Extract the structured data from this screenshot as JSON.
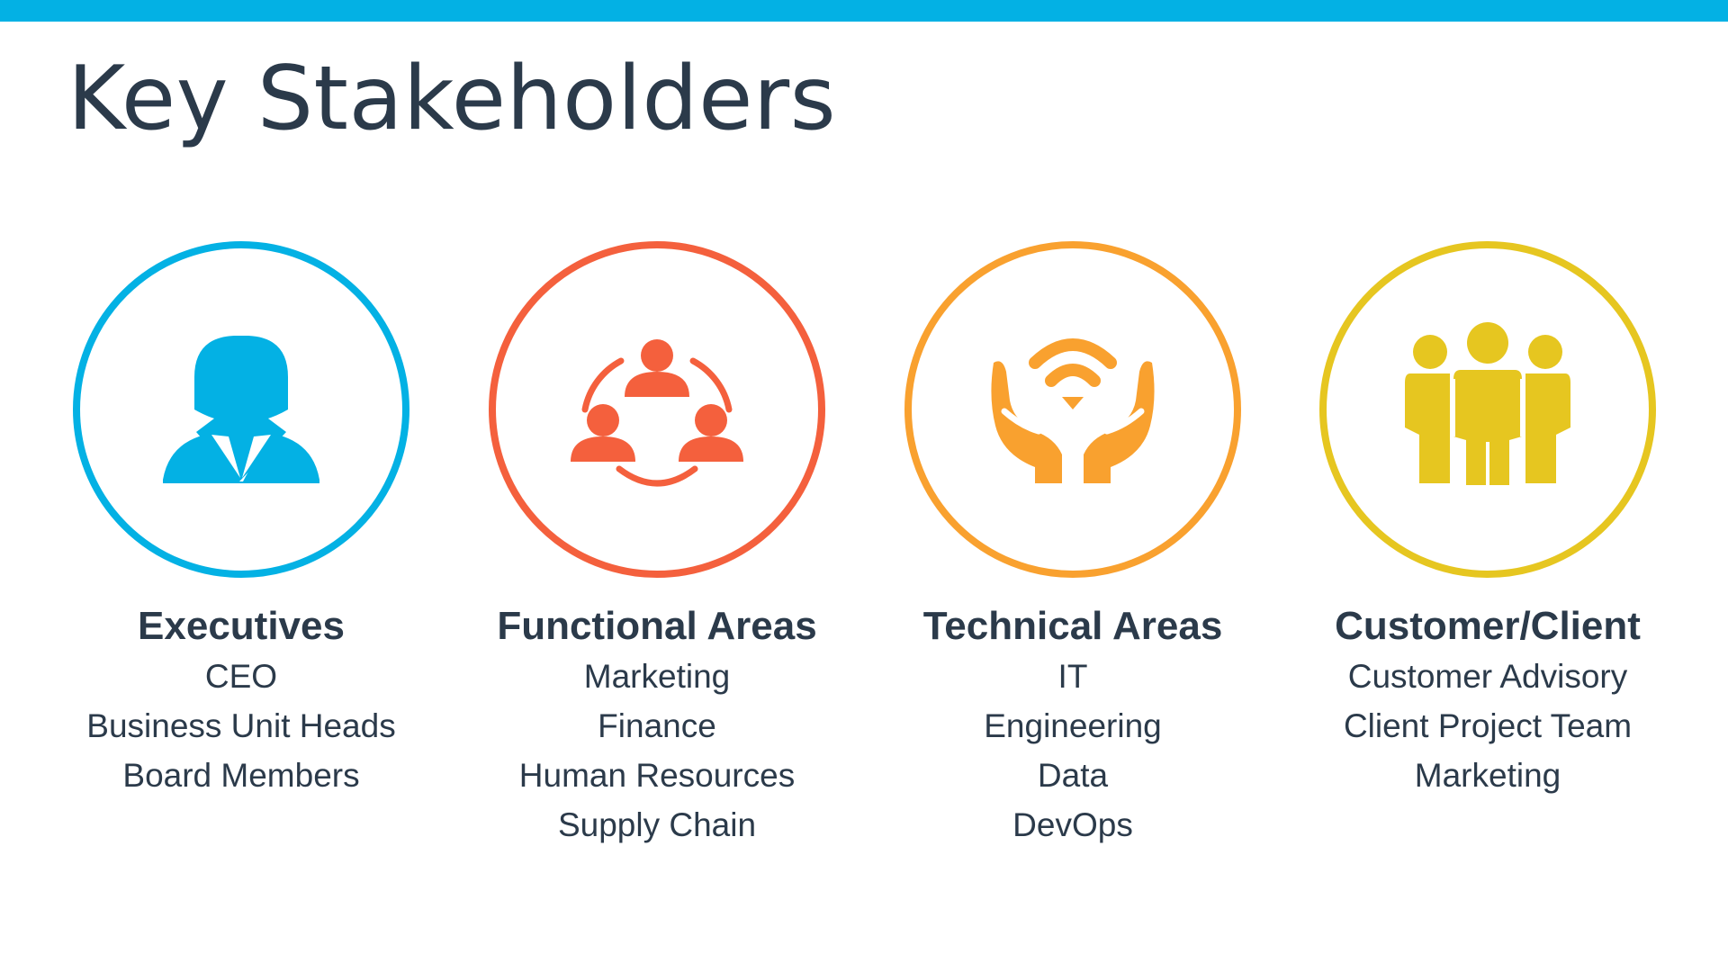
{
  "slide": {
    "title": "Key Stakeholders",
    "accent_color": "#03b1e4",
    "text_color": "#2b3a4a"
  },
  "groups": [
    {
      "heading": "Executives",
      "icon": "executive-person-icon",
      "color": "#03b1e4",
      "items": [
        "CEO",
        "Business Unit Heads",
        "Board Members"
      ]
    },
    {
      "heading": "Functional Areas",
      "icon": "team-cycle-icon",
      "color": "#f4603d",
      "items": [
        "Marketing",
        "Finance",
        "Human Resources",
        "Supply Chain"
      ]
    },
    {
      "heading": "Technical Areas",
      "icon": "hands-wifi-icon",
      "color": "#f9a12f",
      "items": [
        "IT",
        "Engineering",
        "Data",
        "DevOps"
      ]
    },
    {
      "heading": "Customer/Client",
      "icon": "people-group-icon",
      "color": "#e6c620",
      "items": [
        "Customer Advisory",
        "Client Project Team",
        "Marketing"
      ]
    }
  ]
}
